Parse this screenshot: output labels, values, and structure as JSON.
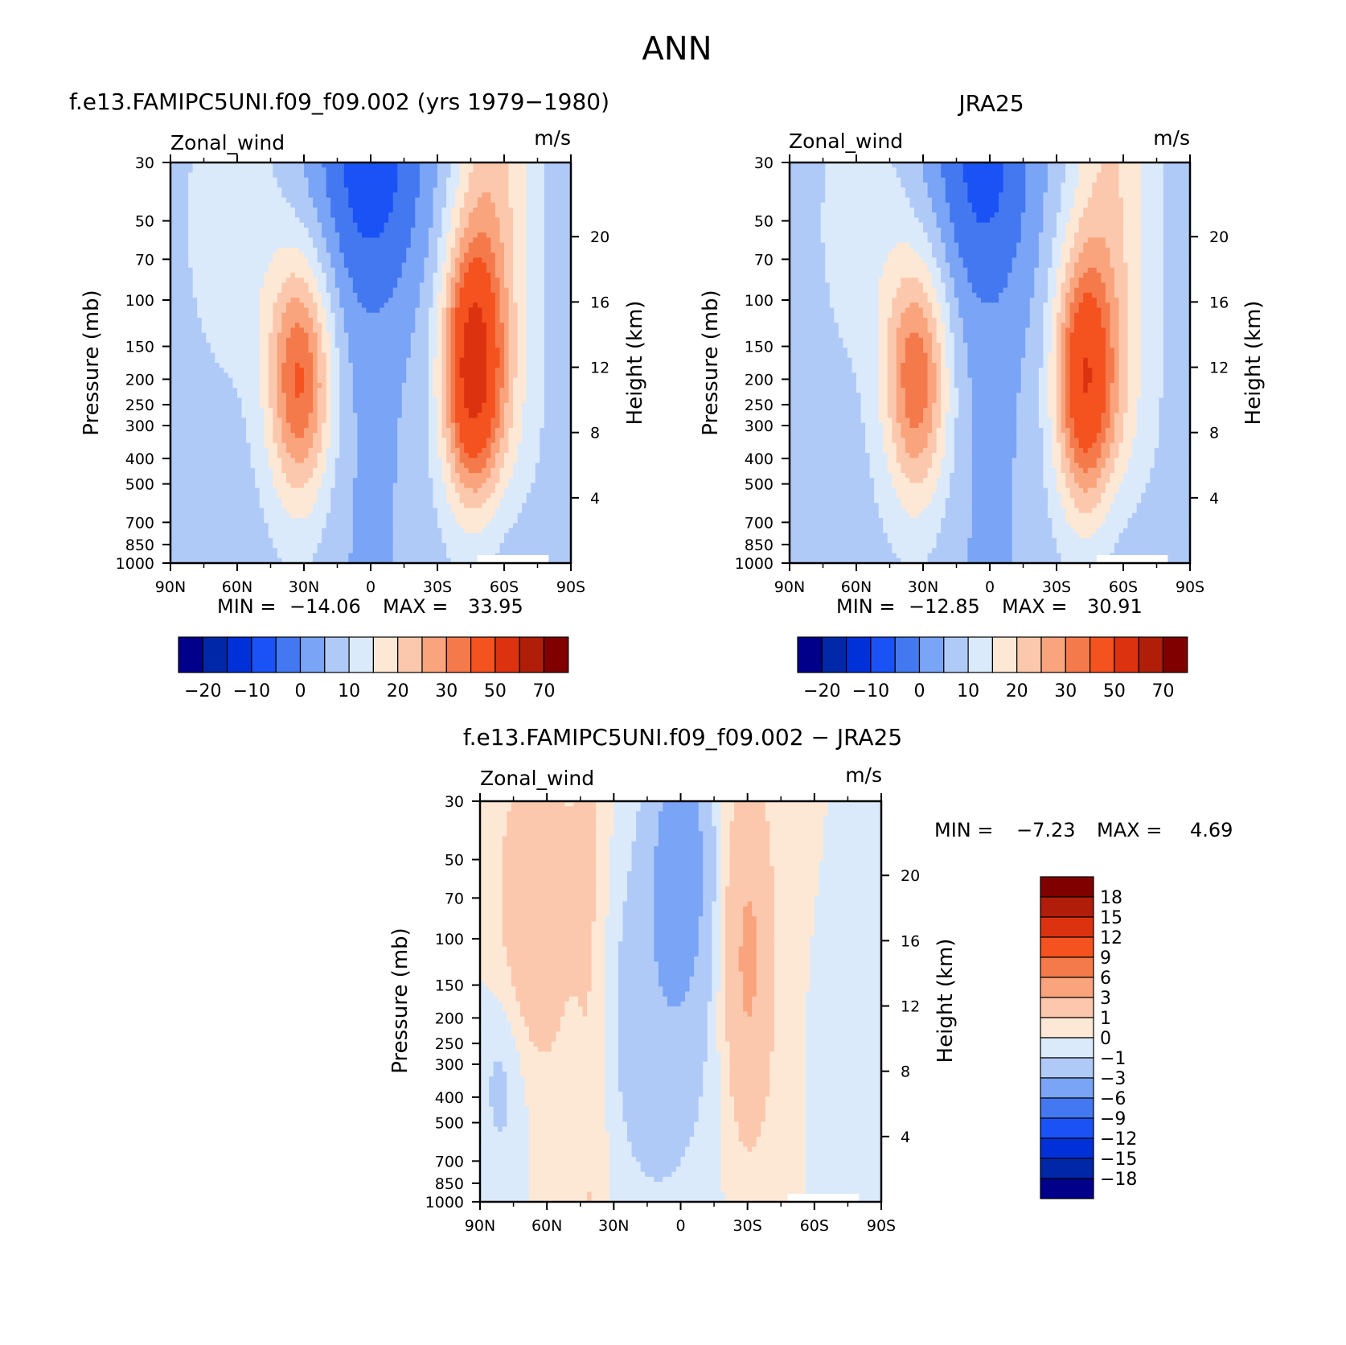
{
  "figure_title": "ANN",
  "colors": {
    "wind_levels": [
      "#00008b",
      "#0027a8",
      "#0030d8",
      "#1a52f5",
      "#4478f0",
      "#7aa4f5",
      "#b0caf8",
      "#daeafb",
      "#fde8d6",
      "#fcc8ad",
      "#f9a47d",
      "#f47a4c",
      "#f4521f",
      "#dc3210",
      "#b01e0a",
      "#800000"
    ],
    "diff_levels": [
      "#00008b",
      "#0027a8",
      "#0030d8",
      "#1a52f5",
      "#4478f0",
      "#7aa4f5",
      "#b0caf8",
      "#daeafb",
      "#fde8d6",
      "#fcc8ad",
      "#f9a47d",
      "#f47a4c",
      "#f4521f",
      "#dc3210",
      "#b01e0a",
      "#800000"
    ]
  },
  "chart_data": [
    {
      "id": "model",
      "type": "heatmap",
      "title": "f.e13.FAMIPC5UNI.f09_f09.002 (yrs 1979-1980)",
      "variable": "Zonal_wind",
      "units": "m/s",
      "x_ticks": [
        "90N",
        "60N",
        "30N",
        "0",
        "30S",
        "60S",
        "90S"
      ],
      "x_range": [
        90,
        -90
      ],
      "ylabel": "Pressure (mb)",
      "y_ticks": [
        30,
        50,
        70,
        100,
        150,
        200,
        250,
        300,
        400,
        500,
        700,
        850,
        1000
      ],
      "y_range": [
        30,
        1000
      ],
      "right_label": "Height (km)",
      "right_ticks": [
        4,
        8,
        12,
        16,
        20
      ],
      "min": "-14.06",
      "max": "33.95",
      "min_label": "MIN =",
      "max_label": "MAX =",
      "colorbar_labels": [
        "-20",
        "-10",
        "0",
        "10",
        "20",
        "30",
        "50",
        "70"
      ],
      "features": {
        "nh_jet": {
          "lat": 32,
          "p": 200,
          "speed": 28
        },
        "sh_jet": {
          "lat": -45,
          "p": 180,
          "speed": 34
        },
        "tropical_easterly": {
          "lat": 0,
          "p": 30,
          "speed": -14
        }
      }
    },
    {
      "id": "obs",
      "type": "heatmap",
      "title": "JRA25",
      "variable": "Zonal_wind",
      "units": "m/s",
      "x_ticks": [
        "90N",
        "60N",
        "30N",
        "0",
        "30S",
        "60S",
        "90S"
      ],
      "x_range": [
        90,
        -90
      ],
      "ylabel": "Pressure (mb)",
      "y_ticks": [
        30,
        50,
        70,
        100,
        150,
        200,
        250,
        300,
        400,
        500,
        700,
        850,
        1000
      ],
      "y_range": [
        30,
        1000
      ],
      "right_label": "Height (km)",
      "right_ticks": [
        4,
        8,
        12,
        16,
        20
      ],
      "min": "-12.85",
      "max": "30.91",
      "min_label": "MIN =",
      "max_label": "MAX =",
      "colorbar_labels": [
        "-20",
        "-10",
        "0",
        "10",
        "20",
        "30",
        "50",
        "70"
      ],
      "features": {
        "nh_jet": {
          "lat": 33,
          "p": 200,
          "speed": 26
        },
        "sh_jet": {
          "lat": -42,
          "p": 200,
          "speed": 31
        },
        "tropical_easterly": {
          "lat": 5,
          "p": 30,
          "speed": -13
        }
      }
    },
    {
      "id": "diff",
      "type": "heatmap",
      "title": "f.e13.FAMIPC5UNI.f09_f09.002 - JRA25",
      "variable": "Zonal_wind",
      "units": "m/s",
      "x_ticks": [
        "90N",
        "60N",
        "30N",
        "0",
        "30S",
        "60S",
        "90S"
      ],
      "x_range": [
        90,
        -90
      ],
      "ylabel": "Pressure (mb)",
      "y_ticks": [
        30,
        50,
        70,
        100,
        150,
        200,
        250,
        300,
        400,
        500,
        700,
        850,
        1000
      ],
      "y_range": [
        30,
        1000
      ],
      "right_label": "Height (km)",
      "right_ticks": [
        4,
        8,
        12,
        16,
        20
      ],
      "min": "-7.23",
      "max": "4.69",
      "min_label": "MIN =",
      "max_label": "MAX =",
      "colorbar_labels": [
        "18",
        "15",
        "12",
        "9",
        "6",
        "3",
        "1",
        "0",
        "-1",
        "-3",
        "-6",
        "-9",
        "-12",
        "-15",
        "-18"
      ]
    }
  ]
}
